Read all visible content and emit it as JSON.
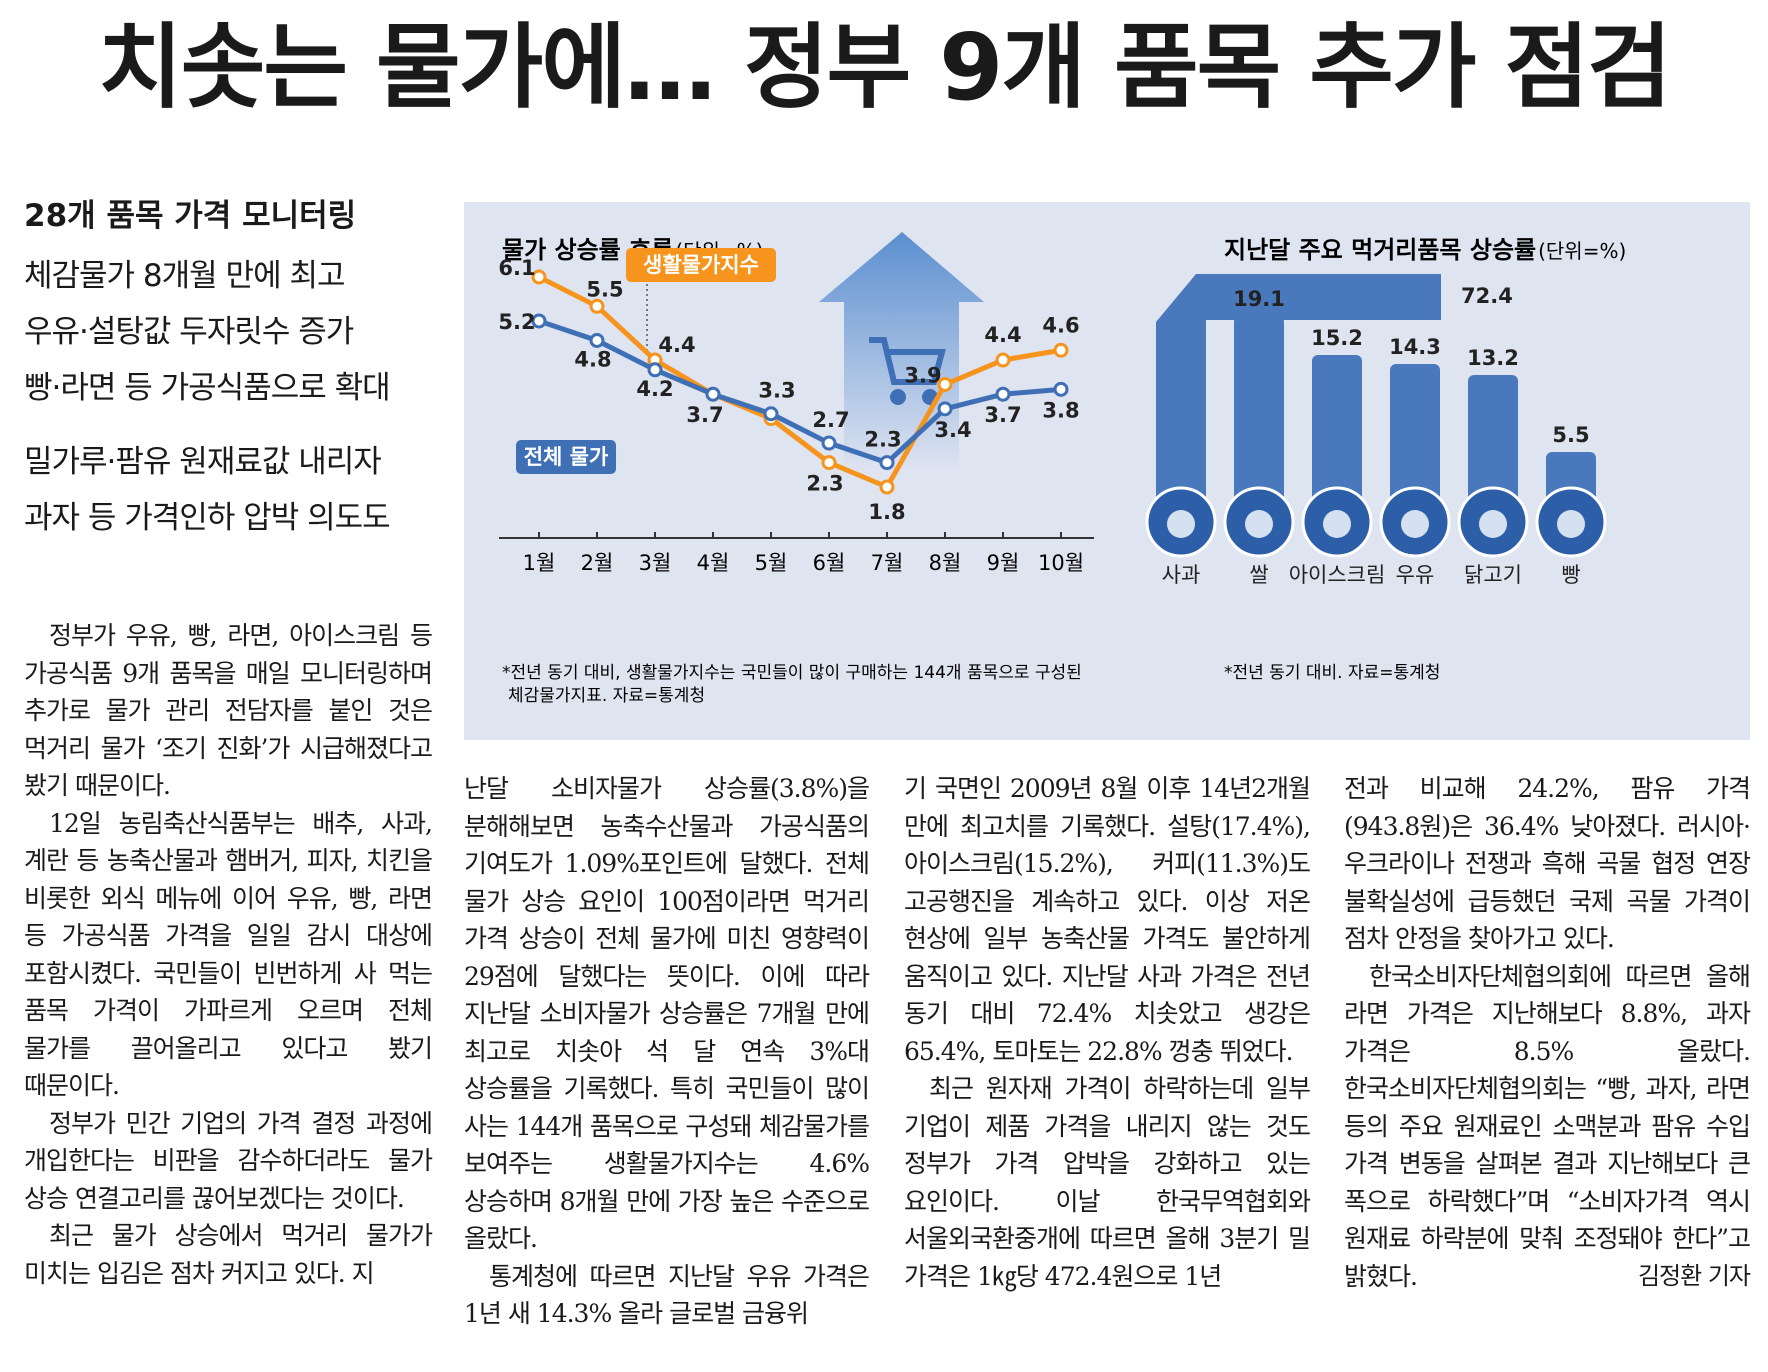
{
  "headline": "치솟는 물가에… 정부 9개 품목 추가 점검",
  "subheads": {
    "lead": "28개 품목 가격 모니터링",
    "lines": [
      "체감물가 8개월 만에 최고",
      "우유·설탕값 두자릿수 증가",
      "빵·라면 등 가공식품으로 확대"
    ],
    "lines2": [
      "밀가루·팜유 원재료값 내리자",
      "과자 등 가격인하 압박 의도도"
    ]
  },
  "body": {
    "col1": [
      "정부가 우유, 빵, 라면, 아이스크림 등 가공식품 9개 품목을 매일 모니터링하며 추가로 물가 관리 전담자를 붙인 것은 먹거리 물가 ‘조기 진화’가 시급해졌다고 봤기 때문이다.",
      "12일 농림축산식품부는 배추, 사과, 계란 등 농축산물과 햄버거, 피자, 치킨을 비롯한 외식 메뉴에 이어 우유, 빵, 라면 등 가공식품 가격을 일일 감시 대상에 포함시켰다. 국민들이 빈번하게 사 먹는 품목 가격이 가파르게 오르며 전체 물가를 끌어올리고 있다고 봤기 때문이다.",
      "정부가 민간 기업의 가격 결정 과정에 개입한다는 비판을 감수하더라도 물가 상승 연결고리를 끊어보겠다는 것이다.",
      "최근 물가 상승에서 먹거리 물가가 미치는 입김은 점차 커지고 있다. 지"
    ],
    "col2": [
      "난달 소비자물가 상승률(3.8%)을 분해해보면 농축수산물과 가공식품의 기여도가 1.09%포인트에 달했다. 전체 물가 상승 요인이 100점이라면 먹거리 가격 상승이 전체 물가에 미친 영향력이 29점에 달했다는 뜻이다. 이에 따라 지난달 소비자물가 상승률은 7개월 만에 최고로 치솟아 석 달 연속 3%대 상승률을 기록했다. 특히 국민들이 많이 사는 144개 품목으로 구성돼 체감물가를 보여주는 생활물가지수는 4.6% 상승하며 8개월 만에 가장 높은 수준으로 올랐다.",
      "통계청에 따르면 지난달 우유 가격은 1년 새 14.3% 올라 글로벌 금융위"
    ],
    "col3": [
      "기 국면인 2009년 8월 이후 14년2개월 만에 최고치를 기록했다. 설탕(17.4%), 아이스크림(15.2%), 커피(11.3%)도 고공행진을 계속하고 있다. 이상 저온 현상에 일부 농축산물 가격도 불안하게 움직이고 있다. 지난달 사과 가격은 전년 동기 대비 72.4% 치솟았고 생강은 65.4%, 토마토는 22.8% 껑충 뛰었다.",
      "최근 원자재 가격이 하락하는데 일부 기업이 제품 가격을 내리지 않는 것도 정부가 가격 압박을 강화하고 있는 요인이다. 이날 한국무역협회와 서울외국환중개에 따르면 올해 3분기 밀 가격은 1㎏당 472.4원으로 1년"
    ],
    "col4": [
      "전과 비교해 24.2%, 팜유 가격(943.8원)은 36.4% 낮아졌다. 러시아·우크라이나 전쟁과 흑해 곡물 협정 연장 불확실성에 급등했던 국제 곡물 가격이 점차 안정을 찾아가고 있다.",
      "한국소비자단체협의회에 따르면 올해 라면 가격은 지난해보다 8.8%, 과자 가격은 8.5% 올랐다. 한국소비자단체협의회는 “빵, 과자, 라면 등의 주요 원재료인 소맥분과 팜유 수입 가격 변동을 살펴본 결과 지난해보다 큰 폭으로 하락했다”며 “소비자가격 역시 원재료 하락분에 맞춰 조정돼야 한다”고 밝혔다."
    ],
    "byline": "김정환 기자"
  },
  "chart_data": [
    {
      "type": "line",
      "title": "물가 상승률 흐름",
      "unit": "(단위=%)",
      "categories": [
        "1월",
        "2월",
        "3월",
        "4월",
        "5월",
        "6월",
        "7월",
        "8월",
        "9월",
        "10월"
      ],
      "series": [
        {
          "name": "생활물가지수",
          "color": "#f7941d",
          "values": [
            6.1,
            5.5,
            4.4,
            3.7,
            3.2,
            2.3,
            1.8,
            3.9,
            4.4,
            4.6
          ]
        },
        {
          "name": "전체 물가",
          "color": "#3f6fb5",
          "values": [
            5.2,
            4.8,
            4.2,
            3.7,
            3.3,
            2.7,
            2.3,
            3.4,
            3.7,
            3.8
          ]
        }
      ],
      "labels": {
        "orange": [
          "6.1",
          "5.5",
          "4.4",
          "",
          "",
          "2.3",
          "1.8",
          "3.9",
          "4.4",
          "4.6"
        ],
        "blue": [
          "5.2",
          "4.8",
          "4.2",
          "3.7",
          "3.3",
          "2.7",
          "2.3",
          "3.4",
          "3.7",
          "3.8"
        ]
      },
      "note_lines": [
        "*전년 동기 대비, 생활물가지수는 국민들이 많이 구매하는 144개 품목으로 구성된",
        "체감물가지표. 자료=통계청"
      ]
    },
    {
      "type": "bar",
      "title": "지난달 주요 먹거리품목 상승률",
      "unit": "(단위=%)",
      "categories": [
        "사과",
        "쌀",
        "아이스크림",
        "우유",
        "닭고기",
        "빵"
      ],
      "values": [
        72.4,
        19.1,
        15.2,
        14.3,
        13.2,
        5.5
      ],
      "value_labels": [
        "72.4",
        "19.1",
        "15.2",
        "14.3",
        "13.2",
        "5.5"
      ],
      "icons": [
        "apple-icon",
        "rice-icon",
        "ice-cream-icon",
        "milk-icon",
        "chicken-icon",
        "bread-icon"
      ],
      "note": "*전년 동기 대비. 자료=통계청"
    }
  ],
  "colors": {
    "panel": "#dfe4f1",
    "blue": "#3f6fb5",
    "orange": "#f7941d",
    "bar": "#4a78bd",
    "arrow": "#5b8fd0"
  }
}
